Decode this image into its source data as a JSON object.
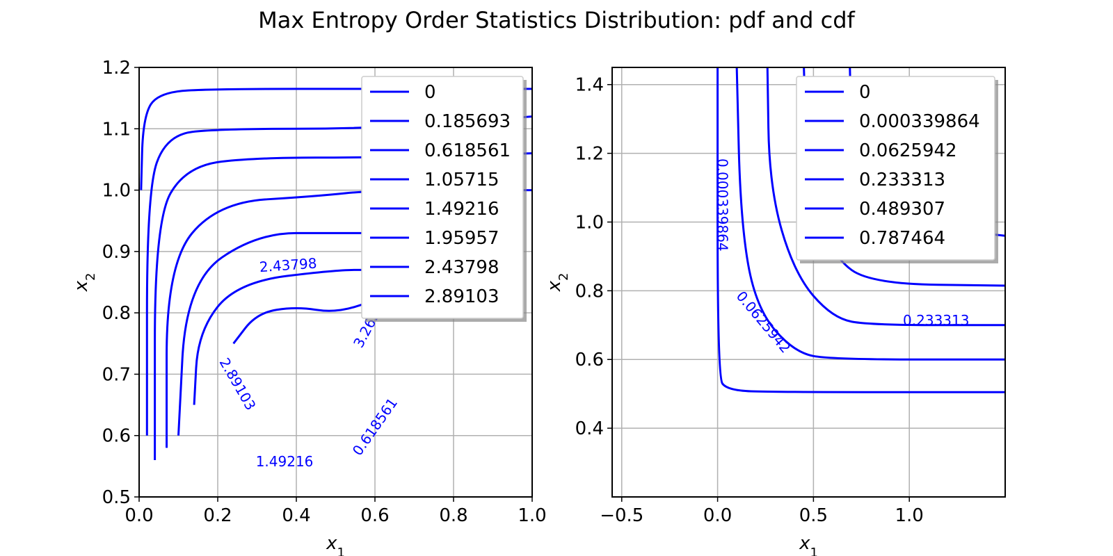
{
  "figure_title": "Max Entropy Order Statistics Distribution: pdf and cdf",
  "chart_data": [
    {
      "type": "contour",
      "xlabel": "x1",
      "ylabel": "x2",
      "xlim": [
        0.0,
        1.0
      ],
      "ylim": [
        0.5,
        1.2
      ],
      "xticks": [
        0.0,
        0.2,
        0.4,
        0.6,
        0.8,
        1.0
      ],
      "yticks": [
        0.5,
        0.6,
        0.7,
        0.8,
        0.9,
        1.0,
        1.1,
        1.2
      ],
      "xtick_labels": [
        "0.0",
        "0.2",
        "0.4",
        "0.6",
        "0.8",
        "1.0"
      ],
      "ytick_labels": [
        "0.5",
        "0.6",
        "0.7",
        "0.8",
        "0.9",
        "1.0",
        "1.1",
        "1.2"
      ],
      "grid": true,
      "color": "#0000ff",
      "legend_position": "top-right",
      "legend": [
        "0",
        "0.185693",
        "0.618561",
        "1.05715",
        "1.49216",
        "1.95957",
        "2.43798",
        "2.89103"
      ],
      "contours": [
        {
          "level": 0.185693,
          "points": [
            [
              0.005,
              1.0
            ],
            [
              0.01,
              1.12
            ],
            [
              0.05,
              1.16
            ],
            [
              0.2,
              1.165
            ],
            [
              0.6,
              1.165
            ],
            [
              1.0,
              1.165
            ]
          ]
        },
        {
          "level": 0.618561,
          "points": [
            [
              0.02,
              0.6
            ],
            [
              0.02,
              1.0
            ],
            [
              0.07,
              1.09
            ],
            [
              0.2,
              1.1
            ],
            [
              0.6,
              1.1
            ],
            [
              1.0,
              1.12
            ]
          ]
        },
        {
          "level": 1.05715,
          "points": [
            [
              0.04,
              0.56
            ],
            [
              0.04,
              0.95
            ],
            [
              0.12,
              1.04
            ],
            [
              0.3,
              1.053
            ],
            [
              0.6,
              1.053
            ],
            [
              1.0,
              1.06
            ]
          ]
        },
        {
          "level": 1.49216,
          "points": [
            [
              0.07,
              0.58
            ],
            [
              0.07,
              0.88
            ],
            [
              0.2,
              0.98
            ],
            [
              0.45,
              0.99
            ],
            [
              0.6,
              1.0
            ],
            [
              1.0,
              1.0
            ]
          ]
        },
        {
          "level": 1.95957,
          "points": [
            [
              0.1,
              0.6
            ],
            [
              0.12,
              0.85
            ],
            [
              0.3,
              0.93
            ],
            [
              0.5,
              0.93
            ],
            [
              0.6,
              0.93
            ],
            [
              0.8,
              0.93
            ]
          ]
        },
        {
          "level": 2.43798,
          "points": [
            [
              0.14,
              0.65
            ],
            [
              0.15,
              0.77
            ],
            [
              0.25,
              0.85
            ],
            [
              0.5,
              0.87
            ],
            [
              0.6,
              0.87
            ]
          ]
        },
        {
          "level": 2.89103,
          "points": [
            [
              0.24,
              0.75
            ],
            [
              0.3,
              0.8
            ],
            [
              0.4,
              0.81
            ],
            [
              0.5,
              0.8
            ],
            [
              0.6,
              0.82
            ]
          ]
        }
      ],
      "inline_labels": [
        "2.43798",
        "2.89103",
        "1.49216",
        "3.262",
        "0.618561"
      ]
    },
    {
      "type": "contour",
      "xlabel": "x1",
      "ylabel": "x2",
      "xlim": [
        -0.55,
        1.5
      ],
      "ylim": [
        0.2,
        1.45
      ],
      "xticks": [
        -0.5,
        0.0,
        0.5,
        1.0
      ],
      "yticks": [
        0.4,
        0.6,
        0.8,
        1.0,
        1.2,
        1.4
      ],
      "xtick_labels": [
        "−0.5",
        "0.0",
        "0.5",
        "1.0"
      ],
      "ytick_labels": [
        "0.4",
        "0.6",
        "0.8",
        "1.0",
        "1.2",
        "1.4"
      ],
      "grid": true,
      "color": "#0000ff",
      "legend_position": "top-right",
      "legend": [
        "0",
        "0.000339864",
        "0.0625942",
        "0.233313",
        "0.489307",
        "0.787464"
      ],
      "contours": [
        {
          "level": 0.000339864,
          "points": [
            [
              0.0,
              1.45
            ],
            [
              0.0,
              0.55
            ],
            [
              0.05,
              0.51
            ],
            [
              0.3,
              0.505
            ],
            [
              1.5,
              0.505
            ]
          ]
        },
        {
          "level": 0.0625942,
          "points": [
            [
              0.1,
              1.45
            ],
            [
              0.12,
              1.0
            ],
            [
              0.2,
              0.75
            ],
            [
              0.4,
              0.62
            ],
            [
              0.6,
              0.6
            ],
            [
              1.5,
              0.6
            ]
          ]
        },
        {
          "level": 0.233313,
          "points": [
            [
              0.26,
              1.45
            ],
            [
              0.27,
              1.1
            ],
            [
              0.4,
              0.85
            ],
            [
              0.6,
              0.72
            ],
            [
              0.8,
              0.7
            ],
            [
              1.5,
              0.7
            ]
          ]
        },
        {
          "level": 0.489307,
          "points": [
            [
              0.45,
              1.45
            ],
            [
              0.47,
              1.1
            ],
            [
              0.6,
              0.9
            ],
            [
              0.8,
              0.82
            ],
            [
              1.5,
              0.815
            ]
          ]
        },
        {
          "level": 0.787464,
          "points": [
            [
              0.69,
              1.45
            ],
            [
              0.7,
              1.2
            ],
            [
              0.85,
              1.0
            ],
            [
              1.5,
              0.96
            ]
          ]
        }
      ],
      "inline_labels": [
        "0.000339864",
        "0.0625942",
        "0.233313"
      ]
    }
  ]
}
